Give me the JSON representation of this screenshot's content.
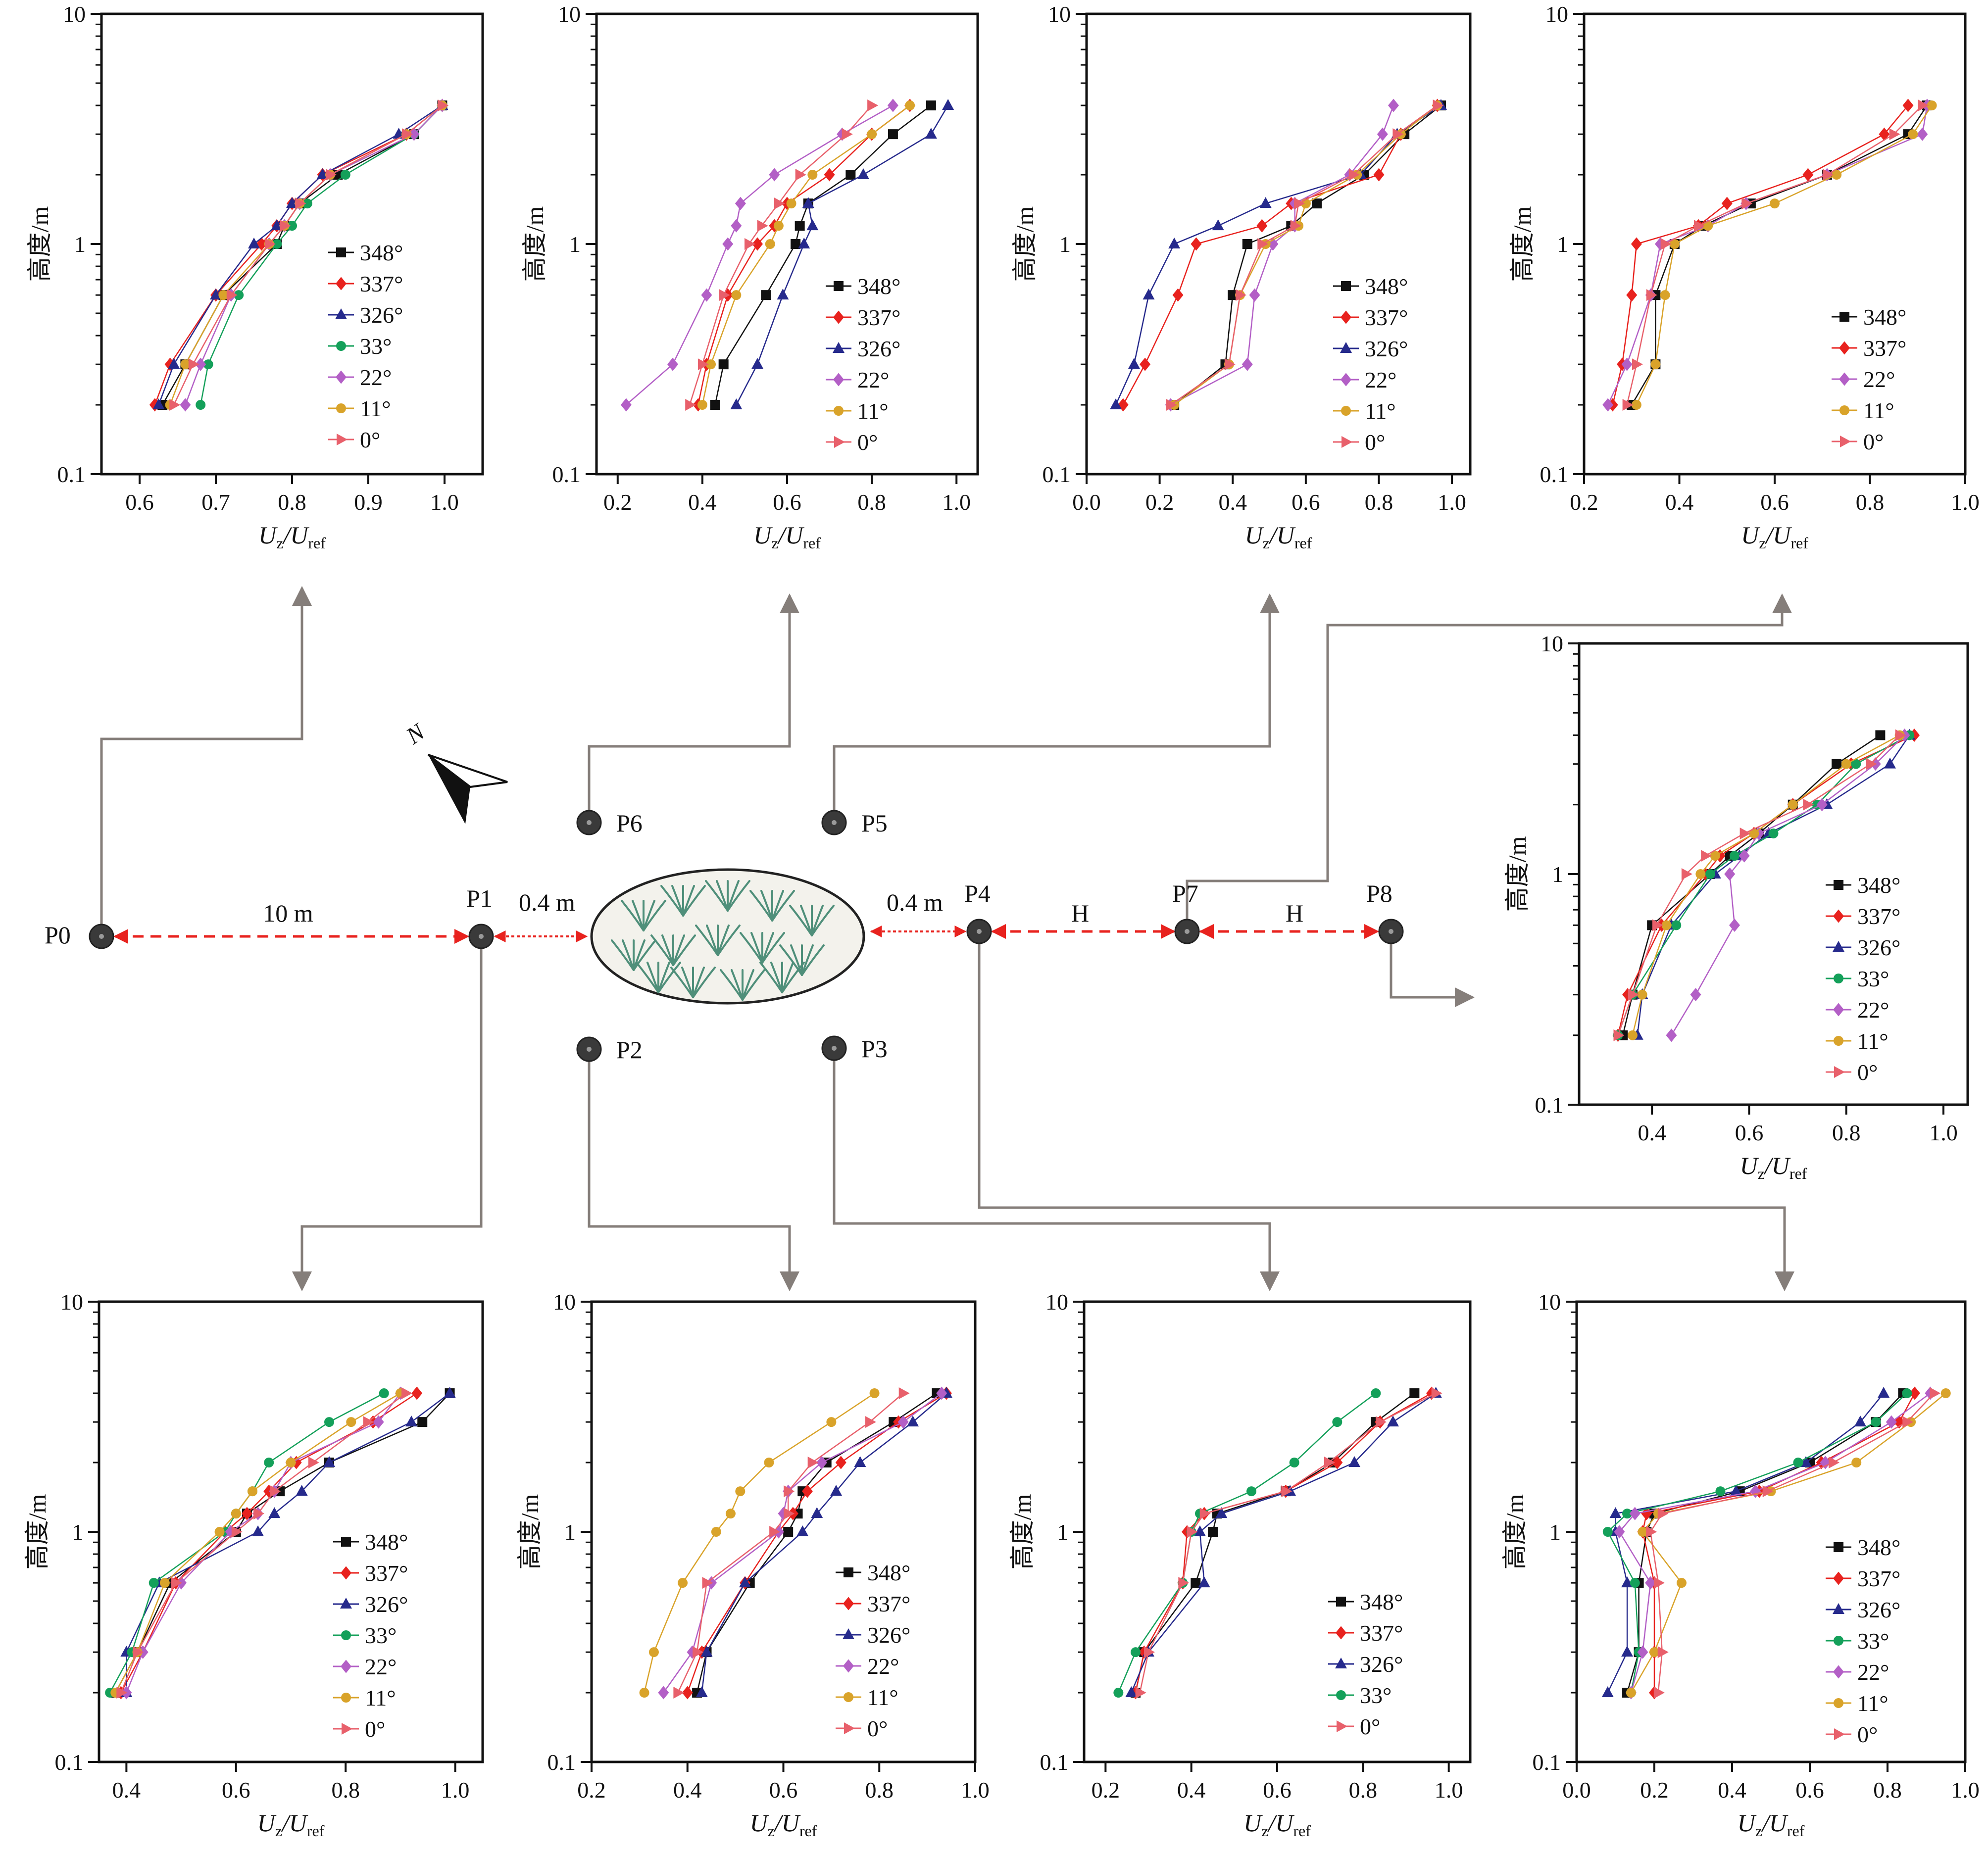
{
  "legend_labels": [
    "348°",
    "337°",
    "326°",
    "33°",
    "22°",
    "11°",
    "0°"
  ],
  "series_colors": {
    "348°": "#111111",
    "337°": "#e8221e",
    "326°": "#262a8c",
    "33°": "#14a05a",
    "22°": "#b35fc6",
    "11°": "#d9a32a",
    "0°": "#e8606b"
  },
  "series_markers": {
    "348°": "square",
    "337°": "diamond",
    "326°": "triangle",
    "33°": "circle",
    "22°": "diamond",
    "11°": "circle",
    "0°": "triangle-right"
  },
  "axis": {
    "ylabel": "高度/m",
    "xlabel_main": "U",
    "xlabel_sub1": "z",
    "xlabel_slash": "/U",
    "xlabel_sub2": "ref",
    "y_scale": "log",
    "ylim": [
      0.1,
      10
    ],
    "y_ticks": [
      "0.1",
      "1",
      "10"
    ]
  },
  "layout_labels": {
    "points": [
      "P0",
      "P1",
      "P2",
      "P3",
      "P4",
      "P5",
      "P6",
      "P7",
      "P8"
    ],
    "distances": [
      "10 m",
      "0.4 m",
      "0.4 m",
      "H",
      "H"
    ],
    "north": "N"
  },
  "chart_data": [
    {
      "panel": "P0",
      "type": "line",
      "xlim": [
        0.55,
        1.05
      ],
      "xticks": [
        "0.6",
        "0.7",
        "0.8",
        "0.9",
        "1.0"
      ],
      "heights": [
        0.2,
        0.3,
        0.6,
        1.0,
        1.2,
        1.5,
        2.0,
        3.0,
        4.0
      ],
      "series": [
        {
          "name": "348°",
          "x": [
            0.63,
            0.66,
            0.71,
            0.78,
            0.79,
            0.81,
            0.86,
            0.96,
            0.997
          ]
        },
        {
          "name": "337°",
          "x": [
            0.62,
            0.64,
            0.7,
            0.76,
            0.78,
            0.8,
            0.84,
            0.95,
            0.997
          ]
        },
        {
          "name": "326°",
          "x": [
            0.625,
            0.645,
            0.7,
            0.75,
            0.78,
            0.8,
            0.84,
            0.94,
            0.997
          ]
        },
        {
          "name": "33°",
          "x": [
            0.68,
            0.69,
            0.73,
            0.78,
            0.8,
            0.82,
            0.87,
            0.96,
            0.997
          ]
        },
        {
          "name": "22°",
          "x": [
            0.66,
            0.68,
            0.72,
            0.77,
            0.79,
            0.81,
            0.85,
            0.96,
            0.997
          ]
        },
        {
          "name": "11°",
          "x": [
            0.64,
            0.66,
            0.71,
            0.77,
            0.79,
            0.81,
            0.85,
            0.95,
            0.997
          ]
        },
        {
          "name": "0°",
          "x": [
            0.645,
            0.67,
            0.72,
            0.77,
            0.79,
            0.81,
            0.85,
            0.95,
            0.997
          ]
        }
      ]
    },
    {
      "panel": "P6",
      "type": "line",
      "xlim": [
        0.15,
        1.05
      ],
      "xticks": [
        "0.2",
        "0.4",
        "0.6",
        "0.8",
        "1.0"
      ],
      "heights": [
        0.2,
        0.3,
        0.6,
        1.0,
        1.2,
        1.5,
        2.0,
        3.0,
        4.0
      ],
      "series": [
        {
          "name": "348°",
          "x": [
            0.43,
            0.45,
            0.55,
            0.62,
            0.63,
            0.65,
            0.75,
            0.85,
            0.94
          ]
        },
        {
          "name": "337°",
          "x": [
            0.39,
            0.41,
            0.46,
            0.53,
            0.57,
            0.6,
            0.7,
            0.8,
            0.89
          ]
        },
        {
          "name": "326°",
          "x": [
            0.48,
            0.53,
            0.59,
            0.64,
            0.66,
            0.65,
            0.78,
            0.94,
            0.98
          ]
        },
        {
          "name": "22°",
          "x": [
            0.22,
            0.33,
            0.41,
            0.46,
            0.48,
            0.49,
            0.57,
            0.73,
            0.85
          ]
        },
        {
          "name": "11°",
          "x": [
            0.4,
            0.42,
            0.48,
            0.56,
            0.58,
            0.61,
            0.66,
            0.8,
            0.89
          ]
        },
        {
          "name": "0°",
          "x": [
            0.37,
            0.4,
            0.45,
            0.51,
            0.54,
            0.58,
            0.63,
            0.74,
            0.8
          ]
        }
      ]
    },
    {
      "panel": "P5",
      "type": "line",
      "xlim": [
        0.0,
        1.05
      ],
      "xticks": [
        "0.0",
        "0.2",
        "0.4",
        "0.6",
        "0.8",
        "1.0"
      ],
      "heights": [
        0.2,
        0.3,
        0.6,
        1.0,
        1.2,
        1.5,
        2.0,
        3.0,
        4.0
      ],
      "series": [
        {
          "name": "348°",
          "x": [
            0.24,
            0.38,
            0.4,
            0.44,
            0.56,
            0.63,
            0.76,
            0.87,
            0.97
          ]
        },
        {
          "name": "337°",
          "x": [
            0.1,
            0.16,
            0.25,
            0.3,
            0.48,
            0.56,
            0.8,
            0.86,
            0.96
          ]
        },
        {
          "name": "326°",
          "x": [
            0.08,
            0.13,
            0.17,
            0.24,
            0.36,
            0.49,
            0.75,
            0.85,
            0.97
          ]
        },
        {
          "name": "22°",
          "x": [
            0.23,
            0.44,
            0.46,
            0.51,
            0.57,
            0.57,
            0.72,
            0.81,
            0.84
          ]
        },
        {
          "name": "11°",
          "x": [
            0.24,
            0.39,
            0.42,
            0.49,
            0.58,
            0.6,
            0.74,
            0.86,
            0.96
          ]
        },
        {
          "name": "0°",
          "x": [
            0.23,
            0.39,
            0.42,
            0.48,
            0.57,
            0.58,
            0.73,
            0.85,
            0.96
          ]
        }
      ]
    },
    {
      "panel": "P7",
      "type": "line",
      "xlim": [
        0.2,
        1.0
      ],
      "xticks": [
        "0.2",
        "0.4",
        "0.6",
        "0.8",
        "1.0"
      ],
      "heights": [
        0.2,
        0.3,
        0.6,
        1.0,
        1.2,
        1.5,
        2.0,
        3.0,
        4.0
      ],
      "series": [
        {
          "name": "348°",
          "x": [
            0.3,
            0.35,
            0.35,
            0.39,
            0.45,
            0.55,
            0.71,
            0.88,
            0.92
          ]
        },
        {
          "name": "337°",
          "x": [
            0.26,
            0.28,
            0.3,
            0.31,
            0.44,
            0.5,
            0.67,
            0.83,
            0.88
          ]
        },
        {
          "name": "22°",
          "x": [
            0.25,
            0.29,
            0.34,
            0.36,
            0.46,
            0.54,
            0.71,
            0.91,
            0.92
          ]
        },
        {
          "name": "11°",
          "x": [
            0.31,
            0.35,
            0.37,
            0.39,
            0.46,
            0.6,
            0.73,
            0.89,
            0.93
          ]
        },
        {
          "name": "0°",
          "x": [
            0.29,
            0.31,
            0.34,
            0.37,
            0.44,
            0.54,
            0.71,
            0.85,
            0.91
          ]
        }
      ]
    },
    {
      "panel": "P8",
      "type": "line",
      "xlim": [
        0.25,
        1.05
      ],
      "xticks": [
        "0.4",
        "0.6",
        "0.8",
        "1.0"
      ],
      "heights": [
        0.2,
        0.3,
        0.6,
        1.0,
        1.2,
        1.5,
        2.0,
        3.0,
        4.0
      ],
      "series": [
        {
          "name": "348°",
          "x": [
            0.34,
            0.36,
            0.4,
            0.52,
            0.56,
            0.62,
            0.69,
            0.78,
            0.87
          ]
        },
        {
          "name": "337°",
          "x": [
            0.33,
            0.35,
            0.42,
            0.51,
            0.54,
            0.61,
            0.69,
            0.81,
            0.94
          ]
        },
        {
          "name": "326°",
          "x": [
            0.37,
            0.38,
            0.44,
            0.53,
            0.58,
            0.64,
            0.76,
            0.89,
            0.93
          ]
        },
        {
          "name": "33°",
          "x": [
            0.33,
            0.36,
            0.45,
            0.52,
            0.57,
            0.65,
            0.74,
            0.82,
            0.93
          ]
        },
        {
          "name": "22°",
          "x": [
            0.44,
            0.49,
            0.57,
            0.56,
            0.59,
            0.62,
            0.75,
            0.86,
            0.92
          ]
        },
        {
          "name": "11°",
          "x": [
            0.36,
            0.38,
            0.43,
            0.5,
            0.53,
            0.61,
            0.69,
            0.8,
            0.91
          ]
        },
        {
          "name": "0°",
          "x": [
            0.33,
            0.36,
            0.41,
            0.47,
            0.51,
            0.59,
            0.72,
            0.85,
            0.91
          ]
        }
      ]
    },
    {
      "panel": "P1",
      "type": "line",
      "xlim": [
        0.35,
        1.05
      ],
      "xticks": [
        "0.4",
        "0.6",
        "0.8",
        "1.0"
      ],
      "heights": [
        0.2,
        0.3,
        0.6,
        1.0,
        1.2,
        1.5,
        2.0,
        3.0,
        4.0
      ],
      "series": [
        {
          "name": "348°",
          "x": [
            0.38,
            0.42,
            0.48,
            0.6,
            0.62,
            0.68,
            0.77,
            0.94,
            0.99
          ]
        },
        {
          "name": "337°",
          "x": [
            0.39,
            0.43,
            0.49,
            0.58,
            0.62,
            0.66,
            0.71,
            0.85,
            0.93
          ]
        },
        {
          "name": "326°",
          "x": [
            0.4,
            0.4,
            0.46,
            0.64,
            0.67,
            0.72,
            0.77,
            0.92,
            0.99
          ]
        },
        {
          "name": "33°",
          "x": [
            0.37,
            0.41,
            0.45,
            0.58,
            0.6,
            0.63,
            0.66,
            0.77,
            0.87
          ]
        },
        {
          "name": "22°",
          "x": [
            0.4,
            0.43,
            0.5,
            0.59,
            0.64,
            0.67,
            0.7,
            0.86,
            0.9
          ]
        },
        {
          "name": "11°",
          "x": [
            0.38,
            0.42,
            0.47,
            0.57,
            0.6,
            0.63,
            0.7,
            0.81,
            0.9
          ]
        },
        {
          "name": "0°",
          "x": [
            0.39,
            0.42,
            0.49,
            0.6,
            0.64,
            0.67,
            0.74,
            0.84,
            0.91
          ]
        }
      ]
    },
    {
      "panel": "P2",
      "type": "line",
      "xlim": [
        0.2,
        1.0
      ],
      "xticks": [
        "0.2",
        "0.4",
        "0.6",
        "0.8",
        "1.0"
      ],
      "heights": [
        0.2,
        0.3,
        0.6,
        1.0,
        1.2,
        1.5,
        2.0,
        3.0,
        4.0
      ],
      "series": [
        {
          "name": "348°",
          "x": [
            0.42,
            0.44,
            0.53,
            0.61,
            0.63,
            0.64,
            0.69,
            0.83,
            0.92
          ]
        },
        {
          "name": "337°",
          "x": [
            0.4,
            0.43,
            0.52,
            0.59,
            0.62,
            0.65,
            0.72,
            0.84,
            0.94
          ]
        },
        {
          "name": "326°",
          "x": [
            0.43,
            0.44,
            0.52,
            0.64,
            0.67,
            0.71,
            0.76,
            0.87,
            0.94
          ]
        },
        {
          "name": "22°",
          "x": [
            0.35,
            0.41,
            0.45,
            0.59,
            0.6,
            0.61,
            0.68,
            0.85,
            0.93
          ]
        },
        {
          "name": "11°",
          "x": [
            0.31,
            0.33,
            0.39,
            0.46,
            0.49,
            0.51,
            0.57,
            0.7,
            0.79
          ]
        },
        {
          "name": "0°",
          "x": [
            0.38,
            0.42,
            0.44,
            0.58,
            0.61,
            0.61,
            0.66,
            0.78,
            0.85
          ]
        }
      ]
    },
    {
      "panel": "P3",
      "type": "line",
      "xlim": [
        0.15,
        1.05
      ],
      "xticks": [
        "0.2",
        "0.4",
        "0.6",
        "0.8",
        "1.0"
      ],
      "heights": [
        0.2,
        0.3,
        0.6,
        1.0,
        1.2,
        1.5,
        2.0,
        3.0,
        4.0
      ],
      "series": [
        {
          "name": "348°",
          "x": [
            0.27,
            0.29,
            0.41,
            0.45,
            0.46,
            0.62,
            0.73,
            0.83,
            0.92
          ]
        },
        {
          "name": "337°",
          "x": [
            0.27,
            0.29,
            0.38,
            0.39,
            0.43,
            0.62,
            0.74,
            0.84,
            0.96
          ]
        },
        {
          "name": "326°",
          "x": [
            0.26,
            0.3,
            0.43,
            0.42,
            0.47,
            0.63,
            0.78,
            0.87,
            0.97
          ]
        },
        {
          "name": "33°",
          "x": [
            0.23,
            0.27,
            0.38,
            0.4,
            0.42,
            0.54,
            0.64,
            0.74,
            0.83
          ]
        },
        {
          "name": "0°",
          "x": [
            0.28,
            0.3,
            0.38,
            0.4,
            0.43,
            0.62,
            0.72,
            0.84,
            0.97
          ]
        }
      ]
    },
    {
      "panel": "P4",
      "type": "line",
      "xlim": [
        0.0,
        1.0
      ],
      "xticks": [
        "0.0",
        "0.2",
        "0.4",
        "0.6",
        "0.8",
        "1.0"
      ],
      "heights": [
        0.2,
        0.3,
        0.6,
        1.0,
        1.2,
        1.5,
        2.0,
        3.0,
        4.0
      ],
      "series": [
        {
          "name": "348°",
          "x": [
            0.13,
            0.16,
            0.16,
            0.18,
            0.2,
            0.42,
            0.6,
            0.77,
            0.84
          ]
        },
        {
          "name": "337°",
          "x": [
            0.2,
            0.2,
            0.2,
            0.17,
            0.18,
            0.47,
            0.63,
            0.83,
            0.87
          ]
        },
        {
          "name": "326°",
          "x": [
            0.08,
            0.13,
            0.13,
            0.1,
            0.1,
            0.41,
            0.59,
            0.73,
            0.79
          ]
        },
        {
          "name": "33°",
          "x": [
            0.14,
            0.16,
            0.15,
            0.08,
            0.13,
            0.37,
            0.57,
            0.77,
            0.85
          ]
        },
        {
          "name": "22°",
          "x": [
            0.14,
            0.17,
            0.19,
            0.11,
            0.15,
            0.46,
            0.64,
            0.81,
            0.91
          ]
        },
        {
          "name": "11°",
          "x": [
            0.14,
            0.2,
            0.27,
            0.17,
            0.21,
            0.5,
            0.72,
            0.86,
            0.95
          ]
        },
        {
          "name": "0°",
          "x": [
            0.21,
            0.22,
            0.21,
            0.19,
            0.22,
            0.49,
            0.66,
            0.85,
            0.92
          ]
        }
      ]
    }
  ]
}
